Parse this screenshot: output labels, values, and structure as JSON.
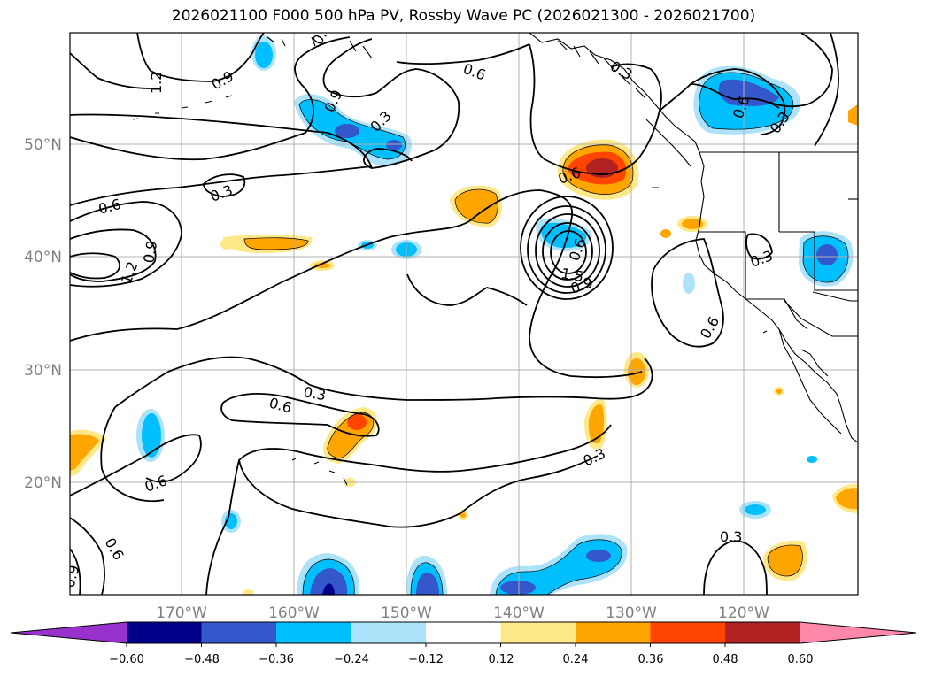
{
  "title": "2026021100 F000 500 hPa PV, Rossby Wave PC (2026021300 - 2026021700)",
  "lat_labels": [
    "50°N",
    "40°N",
    "30°N",
    "20°N"
  ],
  "lon_labels": [
    "170°W",
    "160°W",
    "150°W",
    "140°W",
    "130°W",
    "120°W"
  ],
  "contour_labels": [
    "1.2",
    "0.9",
    "0.9",
    "0.3",
    "0.6",
    "0.3",
    "0.6",
    "0.3",
    "0.6",
    "0.3",
    "0.6",
    "1.2",
    "0.9",
    "0.6",
    "0.9",
    "1.5",
    "0.6",
    "0.3",
    "0.6",
    "0.3",
    "0.6",
    "0.9",
    "0.3"
  ],
  "colorbar": {
    "tick_labels": [
      "−0.60",
      "−0.48",
      "−0.36",
      "−0.24",
      "−0.12",
      "0.12",
      "0.24",
      "0.36",
      "0.48",
      "0.60"
    ],
    "colors": [
      "#9932cc",
      "#00008b",
      "#3557cc",
      "#00bfff",
      "#ade3fa",
      "#ffffff",
      "#ffe887",
      "#ffa500",
      "#ff4500",
      "#b22222",
      "#ff88aa"
    ]
  },
  "colors": {
    "negative_light": "#ade3fa",
    "negative_mid": "#00bfff",
    "negative_strong": "#3557cc",
    "negative_max": "#00008b",
    "positive_light": "#ffe887",
    "positive_mid": "#ffa500",
    "positive_strong": "#ff4500",
    "positive_max": "#b22222"
  }
}
